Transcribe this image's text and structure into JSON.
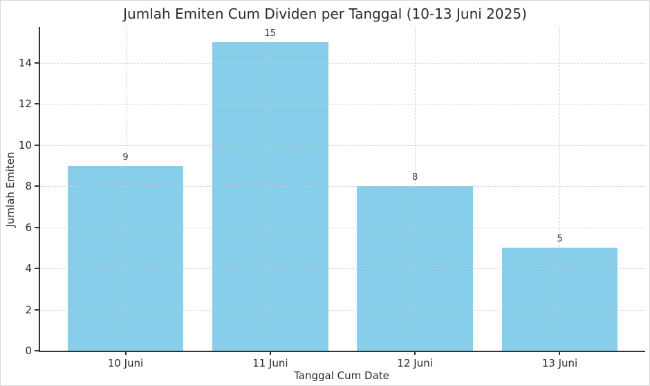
{
  "chart_data": {
    "type": "bar",
    "title": "Jumlah Emiten Cum Dividen per Tanggal (10-13 Juni 2025)",
    "categories": [
      "10 Juni",
      "11 Juni",
      "12 Juni",
      "13 Juni"
    ],
    "values": [
      9,
      15,
      8,
      5
    ],
    "value_labels": [
      "9",
      "15",
      "8",
      "5"
    ],
    "xlabel": "Tanggal Cum Date",
    "ylabel": "Jumlah Emiten",
    "yticks": [
      0,
      2,
      4,
      6,
      8,
      10,
      12,
      14
    ],
    "ylim": [
      0,
      15.75
    ],
    "bar_width_fraction": 0.8,
    "grid": "dashed, horizontal and vertical, drawn above bars",
    "legend": "none",
    "colors": {
      "bar_fill": "#87CEEB",
      "grid_line": "#c9c9c9",
      "axis_spine": "#333333",
      "text": "#2b2b2b",
      "value_label_text": "#3c3c3c",
      "background": "#ffffff"
    }
  }
}
